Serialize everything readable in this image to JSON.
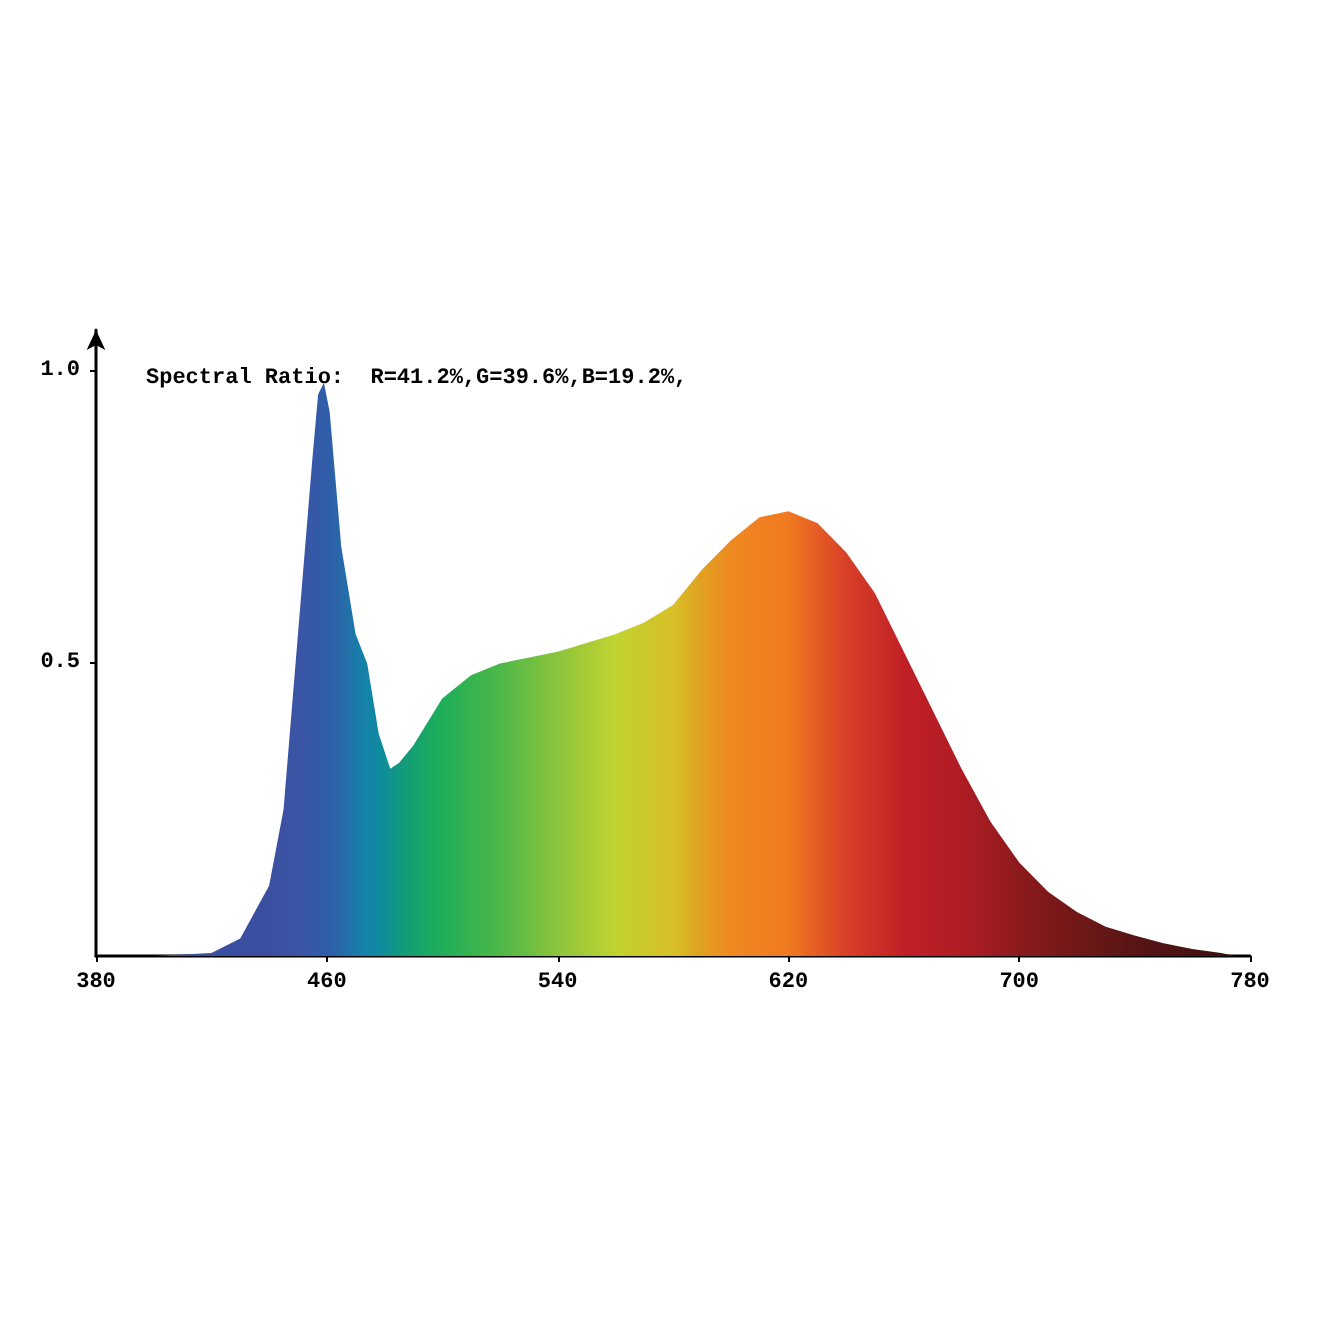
{
  "chart_data": {
    "type": "area",
    "title": "Spectral Ratio:  R=41.2%,G=39.6%,B=19.2%,",
    "x": [
      400,
      420,
      430,
      440,
      445,
      450,
      455,
      457,
      459,
      461,
      465,
      470,
      474,
      478,
      482,
      485,
      490,
      495,
      500,
      510,
      520,
      540,
      560,
      570,
      580,
      590,
      600,
      610,
      620,
      630,
      640,
      650,
      660,
      670,
      680,
      690,
      700,
      710,
      720,
      730,
      740,
      750,
      760,
      770,
      775
    ],
    "series": [
      {
        "values": [
          0,
          0.005,
          0.03,
          0.12,
          0.25,
          0.55,
          0.85,
          0.96,
          0.98,
          0.93,
          0.7,
          0.55,
          0.5,
          0.38,
          0.32,
          0.33,
          0.36,
          0.4,
          0.44,
          0.48,
          0.5,
          0.52,
          0.55,
          0.57,
          0.6,
          0.66,
          0.71,
          0.75,
          0.76,
          0.74,
          0.69,
          0.62,
          0.52,
          0.42,
          0.32,
          0.23,
          0.16,
          0.11,
          0.075,
          0.05,
          0.035,
          0.022,
          0.012,
          0.005,
          0
        ],
        "colors": [
          "#3a4fa0",
          "#3a4fa0",
          "#3a4fa0",
          "#3a4fa0",
          "#3b52a3",
          "#3b55a5",
          "#3558a7",
          "#335aa7",
          "#315ca8",
          "#2f5fa8",
          "#2868a9",
          "#1a7aaa",
          "#1483a8",
          "#108aa0",
          "#0f9290",
          "#12987e",
          "#15a070",
          "#1aa864",
          "#1fae58",
          "#36b350",
          "#4db848",
          "#8cc43c",
          "#c0d430",
          "#ccc82c",
          "#d8c028",
          "#e0a020",
          "#ee8a20",
          "#f08020",
          "#f07a20",
          "#e45c24",
          "#d84028",
          "#cc3027",
          "#c02026",
          "#b81e25",
          "#b01c24",
          "#9e1b20",
          "#8c1a1c",
          "#7e191a",
          "#701818",
          "#641616",
          "#581414",
          "#501313",
          "#481212",
          "#401010",
          "#401010"
        ]
      }
    ],
    "xlim": [
      380,
      780
    ],
    "xticks": [
      380,
      460,
      540,
      620,
      700,
      780
    ],
    "ylim": [
      0,
      1.07
    ],
    "yticks": [
      {
        "value": 0.5,
        "label": "0.5"
      },
      {
        "value": 1,
        "label": "1.0"
      }
    ],
    "grid": false,
    "marker": "none"
  }
}
